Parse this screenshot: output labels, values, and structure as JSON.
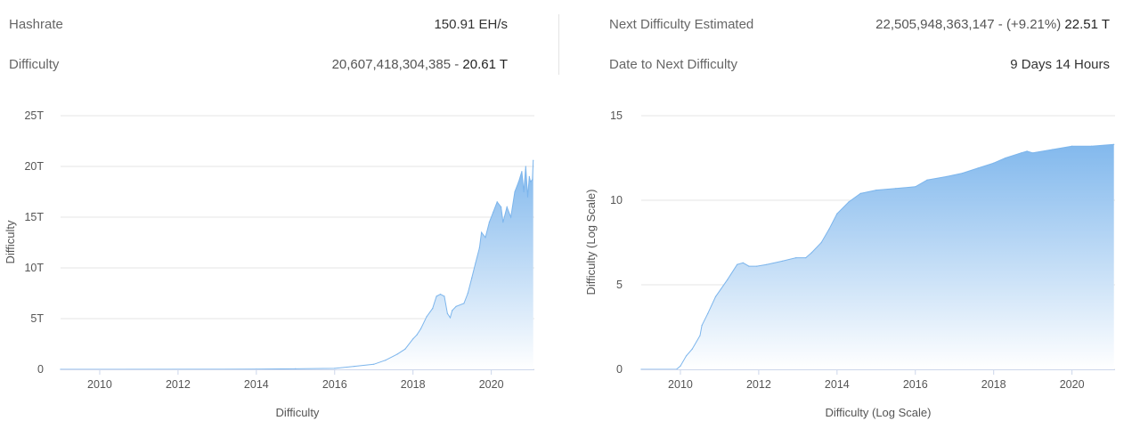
{
  "stats": {
    "hashrate": {
      "label": "Hashrate",
      "value": "150.91 EH/s"
    },
    "difficulty": {
      "label": "Difficulty",
      "value_full": "20,607,418,304,385",
      "sep": " - ",
      "value_short": "20.61 T"
    },
    "next_difficulty": {
      "label": "Next Difficulty Estimated",
      "value_full": "22,505,948,363,147",
      "change": " - (+9.21%)",
      "value_short": " 22.51 T"
    },
    "date_next": {
      "label": "Date to Next Difficulty",
      "value": "9 Days 14 Hours"
    }
  },
  "colors": {
    "area_top": "#7cb5ec",
    "area_bottom": "#ffffff",
    "line": "#7cb5ec",
    "grid": "#e6e6e6"
  },
  "chart_data": [
    {
      "type": "area",
      "title": "",
      "xlabel": "Difficulty",
      "ylabel": "Difficulty",
      "xlim": [
        2009.0,
        2021.1
      ],
      "ylim": [
        0,
        25
      ],
      "x_ticks": [
        2010,
        2012,
        2014,
        2016,
        2018,
        2020
      ],
      "x_tick_labels": [
        "2010",
        "2012",
        "2014",
        "2016",
        "2018",
        "2020"
      ],
      "y_ticks": [
        0,
        5,
        10,
        15,
        20,
        25
      ],
      "y_tick_labels": [
        "0",
        "5T",
        "10T",
        "15T",
        "20T",
        "25T"
      ],
      "unit": "T",
      "x": [
        2009.0,
        2014.0,
        2015.0,
        2016.0,
        2016.5,
        2017.0,
        2017.3,
        2017.6,
        2017.8,
        2018.0,
        2018.1,
        2018.2,
        2018.35,
        2018.5,
        2018.6,
        2018.7,
        2018.8,
        2018.88,
        2018.95,
        2019.0,
        2019.1,
        2019.3,
        2019.4,
        2019.5,
        2019.6,
        2019.7,
        2019.75,
        2019.85,
        2019.95,
        2020.05,
        2020.15,
        2020.25,
        2020.3,
        2020.4,
        2020.5,
        2020.6,
        2020.7,
        2020.78,
        2020.83,
        2020.88,
        2020.93,
        2020.97,
        2021.0,
        2021.05,
        2021.07
      ],
      "values": [
        0.0,
        0.02,
        0.05,
        0.1,
        0.3,
        0.5,
        0.9,
        1.5,
        2.0,
        3.0,
        3.4,
        4.0,
        5.2,
        6.0,
        7.2,
        7.4,
        7.2,
        5.5,
        5.1,
        5.8,
        6.2,
        6.5,
        7.5,
        9.0,
        10.5,
        12.0,
        13.5,
        13.0,
        14.5,
        15.5,
        16.5,
        16.0,
        14.5,
        16.0,
        15.0,
        17.5,
        18.5,
        19.5,
        17.5,
        20.0,
        17.0,
        19.0,
        18.5,
        18.7,
        20.6
      ]
    },
    {
      "type": "area",
      "title": "",
      "xlabel": "Difficulty (Log Scale)",
      "ylabel": "Difficulty (Log Scale)",
      "xlim": [
        2009.0,
        2021.1
      ],
      "ylim": [
        0,
        15
      ],
      "x_ticks": [
        2010,
        2012,
        2014,
        2016,
        2018,
        2020
      ],
      "x_tick_labels": [
        "2010",
        "2012",
        "2014",
        "2016",
        "2018",
        "2020"
      ],
      "y_ticks": [
        0,
        5,
        10,
        15
      ],
      "y_tick_labels": [
        "0",
        "5",
        "10",
        "15"
      ],
      "x": [
        2009.0,
        2009.9,
        2010.0,
        2010.15,
        2010.3,
        2010.5,
        2010.55,
        2010.7,
        2010.9,
        2011.2,
        2011.45,
        2011.6,
        2011.75,
        2011.95,
        2012.2,
        2012.6,
        2012.95,
        2013.2,
        2013.35,
        2013.6,
        2013.8,
        2014.0,
        2014.3,
        2014.6,
        2015.0,
        2015.5,
        2016.0,
        2016.3,
        2016.8,
        2017.2,
        2017.6,
        2018.0,
        2018.3,
        2018.7,
        2018.85,
        2019.0,
        2019.5,
        2020.0,
        2020.5,
        2021.07
      ],
      "values": [
        0.0,
        0.0,
        0.2,
        0.8,
        1.2,
        2.0,
        2.6,
        3.3,
        4.3,
        5.3,
        6.2,
        6.3,
        6.1,
        6.1,
        6.2,
        6.4,
        6.6,
        6.6,
        6.9,
        7.5,
        8.3,
        9.2,
        9.9,
        10.4,
        10.6,
        10.7,
        10.8,
        11.2,
        11.4,
        11.6,
        11.9,
        12.2,
        12.5,
        12.8,
        12.9,
        12.8,
        13.0,
        13.2,
        13.2,
        13.3
      ]
    }
  ]
}
